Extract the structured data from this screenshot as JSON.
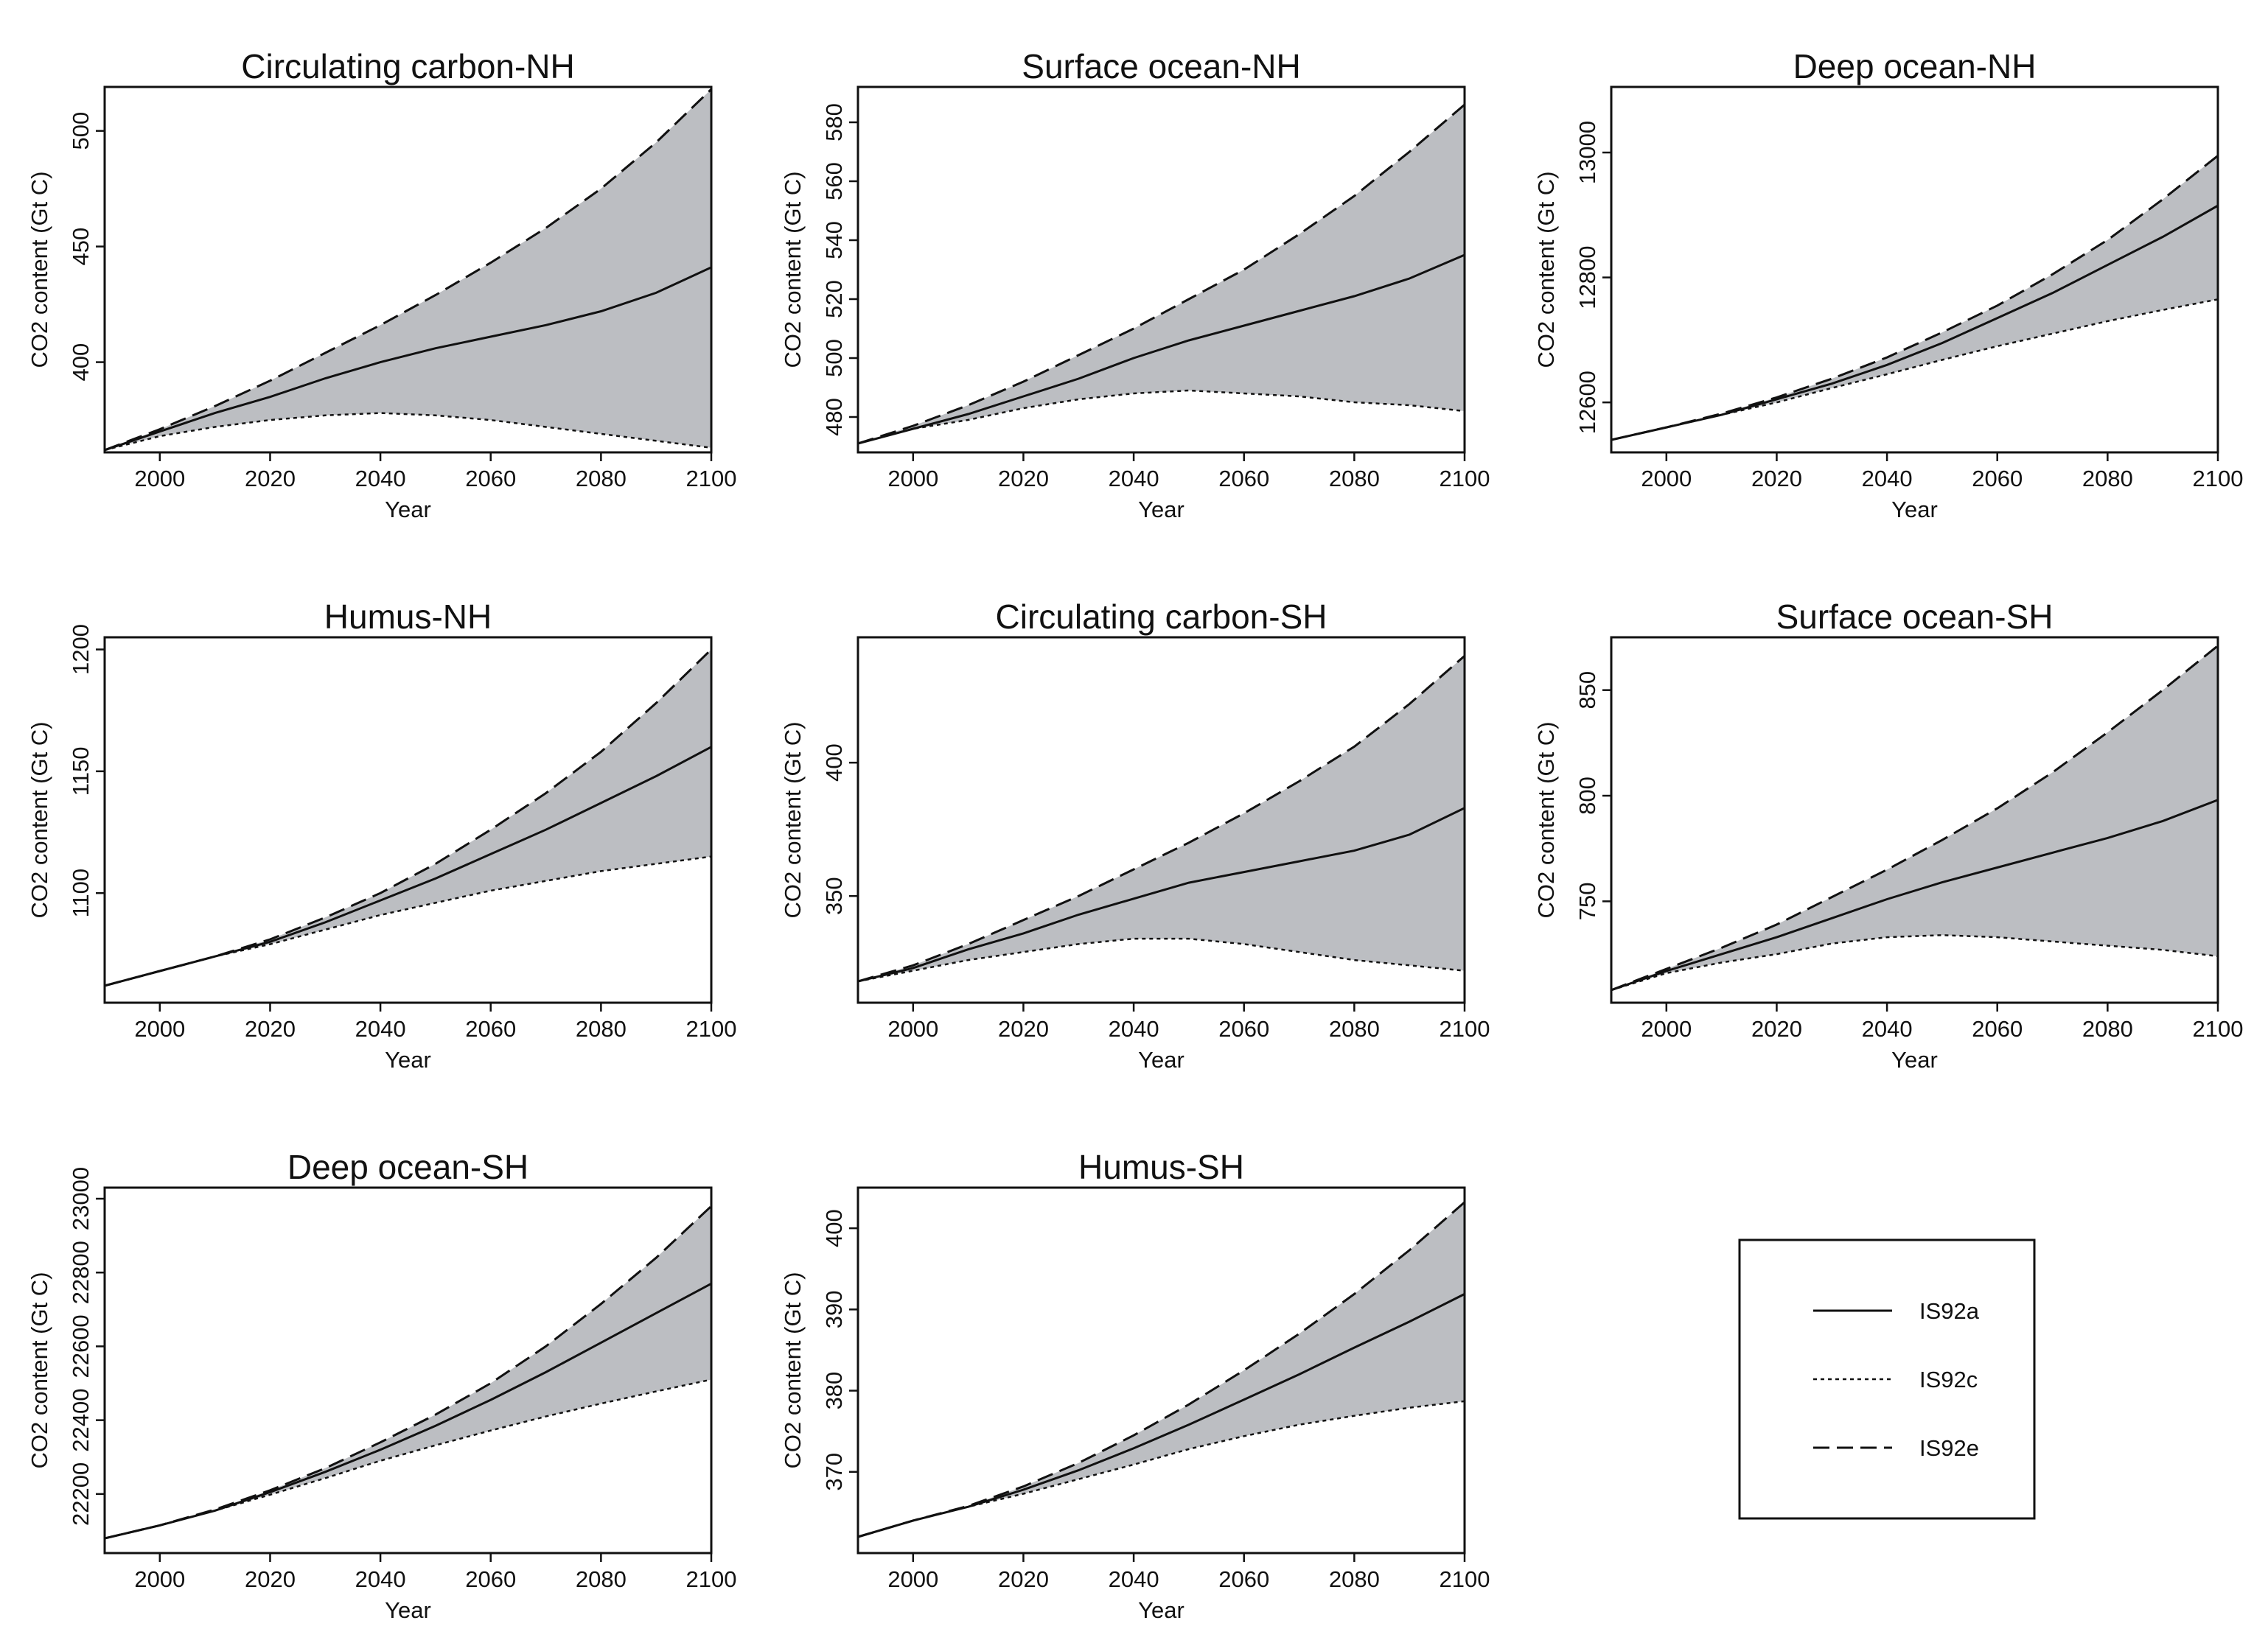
{
  "chart_data": [
    {
      "type": "area",
      "title": "Circulating carbon-NH",
      "xlabel": "Year",
      "ylabel": "CO2 content (Gt C)",
      "xlim": [
        1990,
        2100
      ],
      "ylim": [
        361,
        519
      ],
      "xticks": [
        "2000",
        "2020",
        "2040",
        "2060",
        "2080",
        "2100"
      ],
      "yticks": [
        "400",
        "450",
        "500"
      ],
      "x": [
        1990,
        2000,
        2010,
        2020,
        2030,
        2040,
        2050,
        2060,
        2070,
        2080,
        2090,
        2100
      ],
      "series": [
        {
          "name": "IS92a",
          "values": [
            362,
            370,
            378,
            385,
            393,
            400,
            406,
            411,
            416,
            422,
            430,
            441
          ]
        },
        {
          "name": "IS92c",
          "values": [
            362,
            368,
            372,
            375,
            377,
            378,
            377,
            375,
            372,
            369,
            366,
            363
          ]
        },
        {
          "name": "IS92e",
          "values": [
            362,
            371,
            381,
            392,
            404,
            416,
            429,
            443,
            458,
            475,
            495,
            518
          ]
        }
      ]
    },
    {
      "type": "area",
      "title": "Surface ocean-NH",
      "xlabel": "Year",
      "ylabel": "CO2 content (Gt C)",
      "xlim": [
        1990,
        2100
      ],
      "ylim": [
        468,
        592
      ],
      "xticks": [
        "2000",
        "2020",
        "2040",
        "2060",
        "2080",
        "2100"
      ],
      "yticks": [
        "480",
        "500",
        "520",
        "540",
        "560",
        "580"
      ],
      "x": [
        1990,
        2000,
        2010,
        2020,
        2030,
        2040,
        2050,
        2060,
        2070,
        2080,
        2090,
        2100
      ],
      "series": [
        {
          "name": "IS92a",
          "values": [
            471,
            476,
            481,
            487,
            493,
            500,
            506,
            511,
            516,
            521,
            527,
            535
          ]
        },
        {
          "name": "IS92c",
          "values": [
            471,
            476,
            479,
            483,
            486,
            488,
            489,
            488,
            487,
            485,
            484,
            482
          ]
        },
        {
          "name": "IS92e",
          "values": [
            471,
            477,
            484,
            492,
            501,
            510,
            520,
            530,
            542,
            555,
            570,
            586
          ]
        }
      ]
    },
    {
      "type": "area",
      "title": "Deep ocean-NH",
      "xlabel": "Year",
      "ylabel": "CO2 content (Gt C)",
      "xlim": [
        1990,
        2100
      ],
      "ylim": [
        12520,
        13105
      ],
      "xticks": [
        "2000",
        "2020",
        "2040",
        "2060",
        "2080",
        "2100"
      ],
      "yticks": [
        "12600",
        "12800",
        "13000"
      ],
      "x": [
        1990,
        2000,
        2010,
        2020,
        2030,
        2040,
        2050,
        2060,
        2070,
        2080,
        2090,
        2100
      ],
      "series": [
        {
          "name": "IS92a",
          "values": [
            12540,
            12560,
            12580,
            12605,
            12630,
            12660,
            12695,
            12735,
            12775,
            12820,
            12865,
            12915
          ]
        },
        {
          "name": "IS92c",
          "values": [
            12540,
            12560,
            12580,
            12600,
            12623,
            12645,
            12668,
            12690,
            12710,
            12730,
            12748,
            12765
          ]
        },
        {
          "name": "IS92e",
          "values": [
            12540,
            12560,
            12582,
            12608,
            12638,
            12672,
            12712,
            12755,
            12805,
            12860,
            12925,
            12995
          ]
        }
      ]
    },
    {
      "type": "area",
      "title": "Humus-NH",
      "xlabel": "Year",
      "ylabel": "CO2 content (Gt C)",
      "xlim": [
        1990,
        2100
      ],
      "ylim": [
        1055,
        1205
      ],
      "xticks": [
        "2000",
        "2020",
        "2040",
        "2060",
        "2080",
        "2100"
      ],
      "yticks": [
        "1100",
        "1150",
        "1200"
      ],
      "x": [
        1990,
        2000,
        2010,
        2020,
        2030,
        2040,
        2050,
        2060,
        2070,
        2080,
        2090,
        2100
      ],
      "series": [
        {
          "name": "IS92a",
          "values": [
            1062,
            1068,
            1074,
            1080,
            1088,
            1097,
            1106,
            1116,
            1126,
            1137,
            1148,
            1160
          ]
        },
        {
          "name": "IS92c",
          "values": [
            1062,
            1068,
            1074,
            1079,
            1085,
            1091,
            1096,
            1101,
            1105,
            1109,
            1112,
            1115
          ]
        },
        {
          "name": "IS92e",
          "values": [
            1062,
            1068,
            1074,
            1081,
            1090,
            1100,
            1112,
            1126,
            1141,
            1158,
            1178,
            1200
          ]
        }
      ]
    },
    {
      "type": "area",
      "title": "Circulating carbon-SH",
      "xlabel": "Year",
      "ylabel": "CO2 content (Gt C)",
      "xlim": [
        1990,
        2100
      ],
      "ylim": [
        310,
        447
      ],
      "xticks": [
        "2000",
        "2020",
        "2040",
        "2060",
        "2080",
        "2100"
      ],
      "yticks": [
        "350",
        "400"
      ],
      "x": [
        1990,
        2000,
        2010,
        2020,
        2030,
        2040,
        2050,
        2060,
        2070,
        2080,
        2090,
        2100
      ],
      "series": [
        {
          "name": "IS92a",
          "values": [
            318,
            323,
            330,
            336,
            343,
            349,
            355,
            359,
            363,
            367,
            373,
            383
          ]
        },
        {
          "name": "IS92c",
          "values": [
            318,
            322,
            326,
            329,
            332,
            334,
            334,
            332,
            329,
            326,
            324,
            322
          ]
        },
        {
          "name": "IS92e",
          "values": [
            318,
            324,
            332,
            341,
            350,
            360,
            370,
            381,
            393,
            406,
            422,
            440
          ]
        }
      ]
    },
    {
      "type": "area",
      "title": "Surface ocean-SH",
      "xlabel": "Year",
      "ylabel": "CO2 content (Gt C)",
      "xlim": [
        1990,
        2100
      ],
      "ylim": [
        702,
        875
      ],
      "xticks": [
        "2000",
        "2020",
        "2040",
        "2060",
        "2080",
        "2100"
      ],
      "yticks": [
        "750",
        "800",
        "850"
      ],
      "x": [
        1990,
        2000,
        2010,
        2020,
        2030,
        2040,
        2050,
        2060,
        2070,
        2080,
        2090,
        2100
      ],
      "series": [
        {
          "name": "IS92a",
          "values": [
            708,
            717,
            725,
            733,
            742,
            751,
            759,
            766,
            773,
            780,
            788,
            798
          ]
        },
        {
          "name": "IS92c",
          "values": [
            708,
            716,
            721,
            725,
            730,
            733,
            734,
            733,
            731,
            729,
            727,
            724
          ]
        },
        {
          "name": "IS92e",
          "values": [
            708,
            718,
            728,
            739,
            752,
            765,
            779,
            794,
            811,
            830,
            850,
            871
          ]
        }
      ]
    },
    {
      "type": "area",
      "title": "Deep ocean-SH",
      "xlabel": "Year",
      "ylabel": "CO2 content (Gt C)",
      "xlim": [
        1990,
        2100
      ],
      "ylim": [
        22040,
        23030
      ],
      "xticks": [
        "2000",
        "2020",
        "2040",
        "2060",
        "2080",
        "2100"
      ],
      "yticks": [
        "22200",
        "22400",
        "22600",
        "22800",
        "23000"
      ],
      "x": [
        1990,
        2000,
        2010,
        2020,
        2030,
        2040,
        2050,
        2060,
        2070,
        2080,
        2090,
        2100
      ],
      "series": [
        {
          "name": "IS92a",
          "values": [
            22080,
            22115,
            22155,
            22205,
            22260,
            22320,
            22385,
            22455,
            22530,
            22610,
            22690,
            22770
          ]
        },
        {
          "name": "IS92c",
          "values": [
            22080,
            22115,
            22155,
            22198,
            22243,
            22290,
            22332,
            22372,
            22410,
            22445,
            22478,
            22510
          ]
        },
        {
          "name": "IS92e",
          "values": [
            22080,
            22115,
            22158,
            22210,
            22270,
            22340,
            22415,
            22500,
            22600,
            22715,
            22840,
            22980
          ]
        }
      ]
    },
    {
      "type": "area",
      "title": "Humus-SH",
      "xlabel": "Year",
      "ylabel": "CO2 content (Gt C)",
      "xlim": [
        1990,
        2100
      ],
      "ylim": [
        360,
        405
      ],
      "xticks": [
        "2000",
        "2020",
        "2040",
        "2060",
        "2080",
        "2100"
      ],
      "yticks": [
        "370",
        "380",
        "390",
        "400"
      ],
      "x": [
        1990,
        2000,
        2010,
        2020,
        2030,
        2040,
        2050,
        2060,
        2070,
        2080,
        2090,
        2100
      ],
      "series": [
        {
          "name": "IS92a",
          "values": [
            362,
            364,
            365.7,
            367.8,
            370.2,
            372.9,
            375.8,
            378.9,
            382,
            385.3,
            388.5,
            391.9
          ]
        },
        {
          "name": "IS92c",
          "values": [
            362,
            364,
            365.7,
            367.3,
            369.1,
            370.9,
            372.8,
            374.4,
            375.8,
            376.9,
            377.9,
            378.7
          ]
        },
        {
          "name": "IS92e",
          "values": [
            362,
            364,
            365.8,
            368.2,
            371.1,
            374.5,
            378.3,
            382.5,
            387,
            391.9,
            397.3,
            403.2
          ]
        }
      ]
    }
  ],
  "legend": {
    "items": [
      {
        "name": "IS92a",
        "style": "solid"
      },
      {
        "name": "IS92c",
        "style": "dotted"
      },
      {
        "name": "IS92e",
        "style": "dashed"
      }
    ]
  },
  "colors": {
    "band": "#bcbec2",
    "line": "#111111"
  }
}
